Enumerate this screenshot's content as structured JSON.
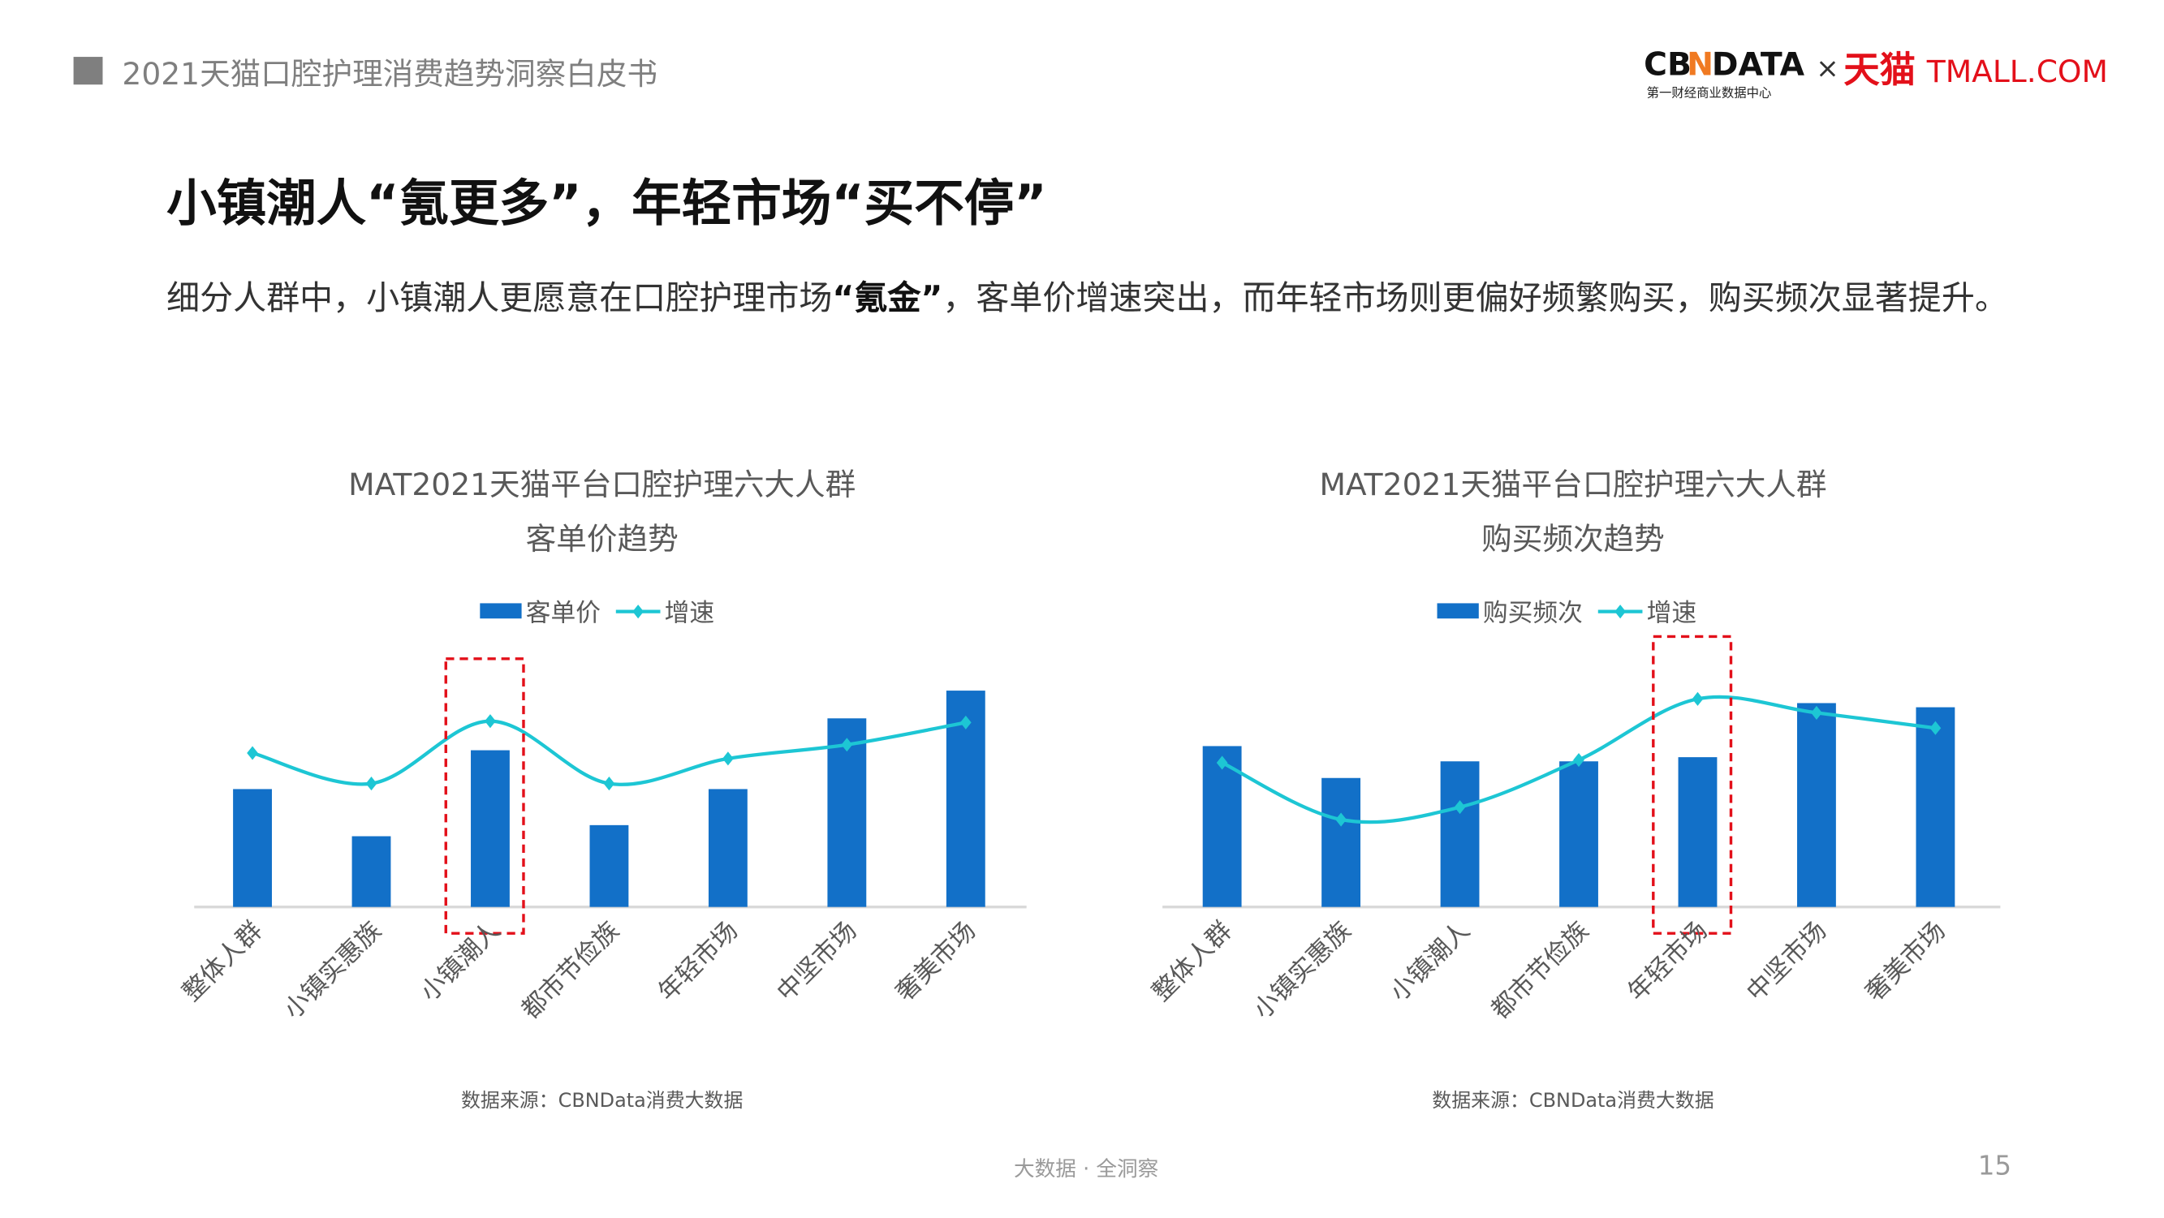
{
  "header": {
    "title": "2021天猫口腔护理消费趋势洞察白皮书",
    "logo_text": "CBNDATA × 天猫 TMALL.COM",
    "logo_subtitle": "第一财经商业数据中心"
  },
  "headline": "小镇潮人“氪更多”，年轻市场“买不停”",
  "body": {
    "part1": "细分人群中，小镇潮人更愿意在口腔护理市场",
    "bold": "“氪金”",
    "part2": "，客单价增速突出，而年轻市场则更偏好频繁购买，购买频次显著提升。"
  },
  "colors": {
    "bar": "#1270C8",
    "line": "#1DC6D4",
    "highlight": "#E3101A",
    "axis": "#D9D9D9"
  },
  "chart_data": [
    {
      "type": "bar+line",
      "title": [
        "MAT2021天猫平台口腔护理六大人群",
        "客单价趋势"
      ],
      "categories": [
        "整体人群",
        "小镇实惠族",
        "小镇潮人",
        "都市节俭族",
        "年轻市场",
        "中坚市场",
        "奢美市场"
      ],
      "series": [
        {
          "name": "客单价",
          "type": "bar",
          "values": [
            85,
            51,
            113,
            59,
            85,
            136,
            156
          ]
        },
        {
          "name": "增速",
          "type": "line",
          "smooth": true,
          "marker": "diamond",
          "values": [
            111,
            89,
            134,
            89,
            107,
            117,
            133
          ]
        }
      ],
      "highlight_category": "小镇潮人",
      "y_axis_visible": false,
      "grid": false,
      "legend": "top",
      "source": "数据来源：CBNData消费大数据"
    },
    {
      "type": "bar+line",
      "title": [
        "MAT2021天猫平台口腔护理六大人群",
        "购买频次趋势"
      ],
      "categories": [
        "整体人群",
        "小镇实惠族",
        "小镇潮人",
        "都市节俭族",
        "年轻市场",
        "中坚市场",
        "奢美市场"
      ],
      "series": [
        {
          "name": "购买频次",
          "type": "bar",
          "values": [
            116,
            93,
            105,
            105,
            108,
            147,
            144
          ]
        },
        {
          "name": "增速",
          "type": "line",
          "smooth": true,
          "marker": "diamond",
          "values": [
            104,
            63,
            72,
            106,
            150,
            140,
            129
          ]
        }
      ],
      "highlight_category": "年轻市场",
      "y_axis_visible": false,
      "grid": false,
      "legend": "top",
      "source": "数据来源：CBNData消费大数据"
    }
  ],
  "footer": {
    "slogan": "大数据 · 全洞察",
    "page": "15"
  }
}
